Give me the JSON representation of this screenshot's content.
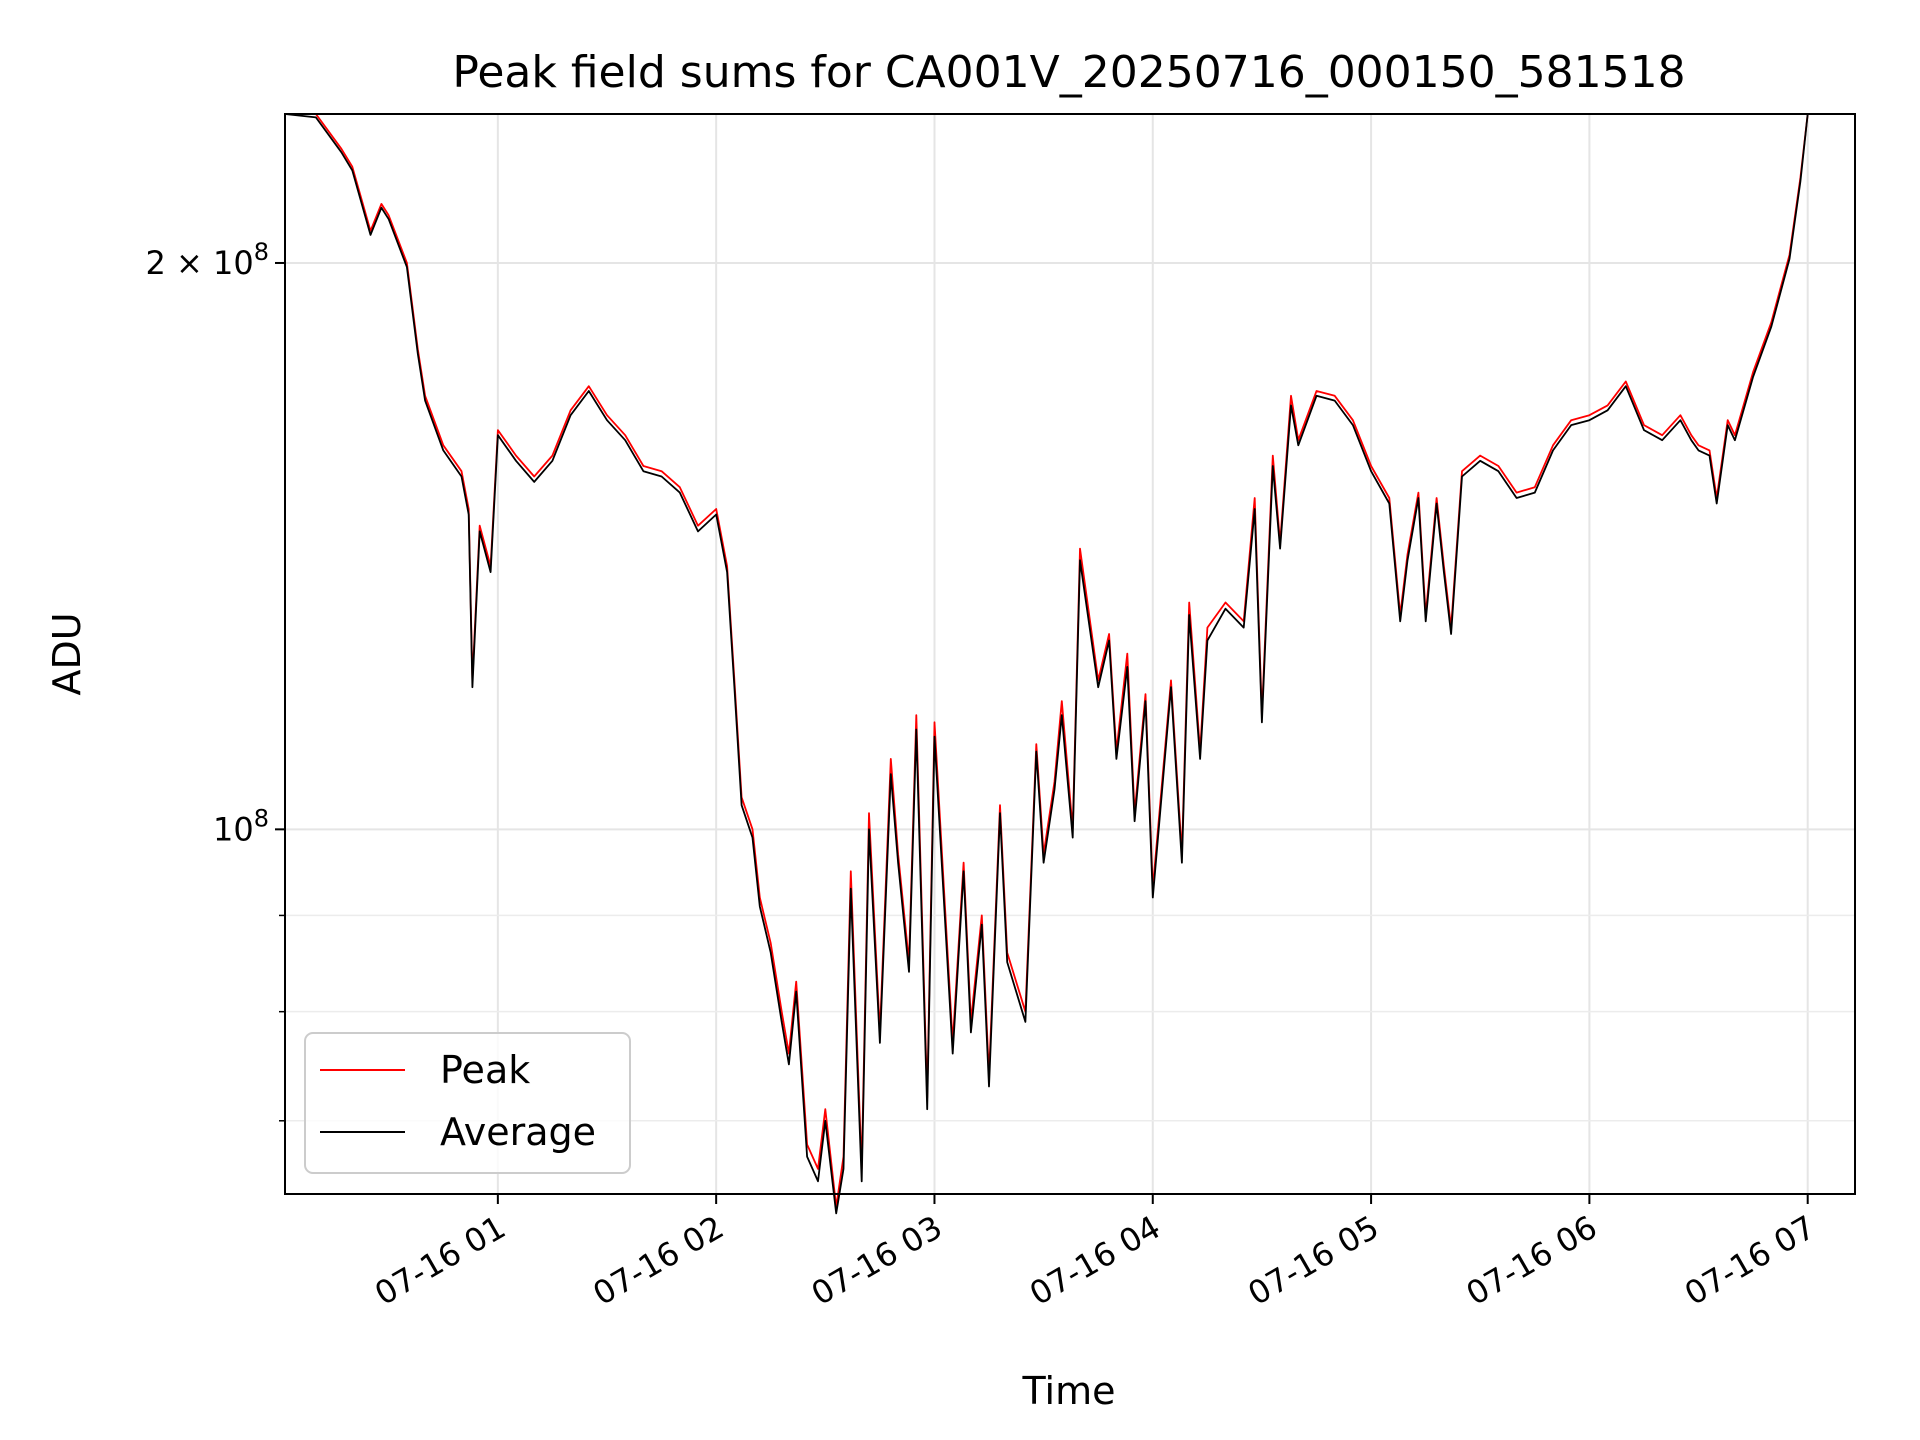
{
  "chart_data": {
    "type": "line",
    "title": "Peak field sums for CA001V_20250716_000150_581518",
    "xlabel": "Time",
    "ylabel": "ADU",
    "xlim": [
      "2025-07-16 00:01:30",
      "2025-07-16 07:13:00"
    ],
    "ylim": [
      64000000,
      240000000
    ],
    "yscale": "log",
    "grid": true,
    "legend_location": "lower left",
    "x_ticks": [
      {
        "x": "2025-07-16 01:00",
        "label": "07-16 01"
      },
      {
        "x": "2025-07-16 02:00",
        "label": "07-16 02"
      },
      {
        "x": "2025-07-16 03:00",
        "label": "07-16 03"
      },
      {
        "x": "2025-07-16 04:00",
        "label": "07-16 04"
      },
      {
        "x": "2025-07-16 05:00",
        "label": "07-16 05"
      },
      {
        "x": "2025-07-16 06:00",
        "label": "07-16 06"
      },
      {
        "x": "2025-07-16 07:00",
        "label": "07-16 07"
      }
    ],
    "y_ticks": [
      {
        "y": 200000000,
        "base": "2 × 10",
        "exp": "8"
      },
      {
        "y": 100000000,
        "base": "10",
        "exp": "8"
      }
    ],
    "y_minor_ticks": [
      60000000,
      70000000,
      80000000,
      90000000
    ],
    "x": [
      "2025-07-16 00:01:30",
      "2025-07-16 00:10",
      "2025-07-16 00:17",
      "2025-07-16 00:20",
      "2025-07-16 00:25",
      "2025-07-16 00:28",
      "2025-07-16 00:30",
      "2025-07-16 00:35",
      "2025-07-16 00:38",
      "2025-07-16 00:40",
      "2025-07-16 00:45",
      "2025-07-16 00:48",
      "2025-07-16 00:50",
      "2025-07-16 00:52",
      "2025-07-16 00:53",
      "2025-07-16 00:55",
      "2025-07-16 00:58",
      "2025-07-16 01:00",
      "2025-07-16 01:05",
      "2025-07-16 01:10",
      "2025-07-16 01:15",
      "2025-07-16 01:20",
      "2025-07-16 01:25",
      "2025-07-16 01:30",
      "2025-07-16 01:35",
      "2025-07-16 01:40",
      "2025-07-16 01:45",
      "2025-07-16 01:50",
      "2025-07-16 01:55",
      "2025-07-16 02:00",
      "2025-07-16 02:03",
      "2025-07-16 02:05",
      "2025-07-16 02:07",
      "2025-07-16 02:10",
      "2025-07-16 02:12",
      "2025-07-16 02:15",
      "2025-07-16 02:18",
      "2025-07-16 02:20",
      "2025-07-16 02:22",
      "2025-07-16 02:25",
      "2025-07-16 02:28",
      "2025-07-16 02:30",
      "2025-07-16 02:33",
      "2025-07-16 02:35",
      "2025-07-16 02:37",
      "2025-07-16 02:40",
      "2025-07-16 02:42",
      "2025-07-16 02:45",
      "2025-07-16 02:48",
      "2025-07-16 02:50",
      "2025-07-16 02:53",
      "2025-07-16 02:55",
      "2025-07-16 02:58",
      "2025-07-16 03:00",
      "2025-07-16 03:05",
      "2025-07-16 03:08",
      "2025-07-16 03:10",
      "2025-07-16 03:13",
      "2025-07-16 03:15",
      "2025-07-16 03:18",
      "2025-07-16 03:20",
      "2025-07-16 03:25",
      "2025-07-16 03:28",
      "2025-07-16 03:30",
      "2025-07-16 03:33",
      "2025-07-16 03:35",
      "2025-07-16 03:38",
      "2025-07-16 03:40",
      "2025-07-16 03:45",
      "2025-07-16 03:48",
      "2025-07-16 03:50",
      "2025-07-16 03:53",
      "2025-07-16 03:55",
      "2025-07-16 03:58",
      "2025-07-16 04:00",
      "2025-07-16 04:05",
      "2025-07-16 04:08",
      "2025-07-16 04:10",
      "2025-07-16 04:13",
      "2025-07-16 04:15",
      "2025-07-16 04:20",
      "2025-07-16 04:25",
      "2025-07-16 04:28",
      "2025-07-16 04:30",
      "2025-07-16 04:33",
      "2025-07-16 04:35",
      "2025-07-16 04:38",
      "2025-07-16 04:40",
      "2025-07-16 04:45",
      "2025-07-16 04:50",
      "2025-07-16 04:55",
      "2025-07-16 05:00",
      "2025-07-16 05:05",
      "2025-07-16 05:08",
      "2025-07-16 05:10",
      "2025-07-16 05:13",
      "2025-07-16 05:15",
      "2025-07-16 05:18",
      "2025-07-16 05:20",
      "2025-07-16 05:22",
      "2025-07-16 05:25",
      "2025-07-16 05:30",
      "2025-07-16 05:35",
      "2025-07-16 05:40",
      "2025-07-16 05:45",
      "2025-07-16 05:50",
      "2025-07-16 05:55",
      "2025-07-16 06:00",
      "2025-07-16 06:05",
      "2025-07-16 06:10",
      "2025-07-16 06:15",
      "2025-07-16 06:20",
      "2025-07-16 06:25",
      "2025-07-16 06:28",
      "2025-07-16 06:30",
      "2025-07-16 06:33",
      "2025-07-16 06:35",
      "2025-07-16 06:38",
      "2025-07-16 06:40",
      "2025-07-16 06:45",
      "2025-07-16 06:50",
      "2025-07-16 06:55",
      "2025-07-16 06:58",
      "2025-07-16 07:00"
    ],
    "series": [
      {
        "name": "Peak",
        "color": "#ff0000",
        "values": [
          240000000,
          240000000,
          230000000,
          225000000,
          208000000,
          215000000,
          212000000,
          200000000,
          180000000,
          170000000,
          160000000,
          157000000,
          155000000,
          148000000,
          120000000,
          145000000,
          138000000,
          163000000,
          158000000,
          154000000,
          158000000,
          167000000,
          172000000,
          166000000,
          162000000,
          156000000,
          155000000,
          152000000,
          145000000,
          148000000,
          138000000,
          120000000,
          104000000,
          100000000,
          92000000,
          87000000,
          80000000,
          76000000,
          83000000,
          68000000,
          66000000,
          71000000,
          63000000,
          67000000,
          95000000,
          66000000,
          102000000,
          78000000,
          109000000,
          97000000,
          85000000,
          115000000,
          72000000,
          114000000,
          77000000,
          96000000,
          79000000,
          90000000,
          74000000,
          103000000,
          86000000,
          80000000,
          111000000,
          97000000,
          106000000,
          117000000,
          100000000,
          141000000,
          120000000,
          127000000,
          110000000,
          124000000,
          102000000,
          118000000,
          93000000,
          120000000,
          97000000,
          132000000,
          110000000,
          128000000,
          132000000,
          129000000,
          150000000,
          115000000,
          158000000,
          142000000,
          170000000,
          161000000,
          171000000,
          170000000,
          165000000,
          156000000,
          150000000,
          130000000,
          140000000,
          151000000,
          130000000,
          150000000,
          138000000,
          128000000,
          155000000,
          158000000,
          156000000,
          151000000,
          152000000,
          160000000,
          165000000,
          166000000,
          168000000,
          173000000,
          164000000,
          162000000,
          166000000,
          162000000,
          160000000,
          159000000,
          150000000,
          165000000,
          162000000,
          175000000,
          186000000,
          202000000,
          222000000,
          240000000
        ]
      },
      {
        "name": "Average",
        "color": "#000000",
        "values": [
          240000000,
          239000000,
          229000000,
          224000000,
          207000000,
          214000000,
          211000000,
          199000000,
          179000000,
          169000000,
          159000000,
          156000000,
          154000000,
          147000000,
          119000000,
          144000000,
          137000000,
          162000000,
          157000000,
          153000000,
          157000000,
          166000000,
          171000000,
          165000000,
          161000000,
          155000000,
          154000000,
          151000000,
          144000000,
          147000000,
          137000000,
          119000000,
          103000000,
          99000000,
          91000000,
          86000000,
          79000000,
          75000000,
          82000000,
          67000000,
          65000000,
          70000000,
          62500000,
          66000000,
          93000000,
          65000000,
          100000000,
          77000000,
          107000000,
          96000000,
          84000000,
          113000000,
          71000000,
          112000000,
          76000000,
          95000000,
          78000000,
          89000000,
          73000000,
          102000000,
          85000000,
          79000000,
          110000000,
          96000000,
          105000000,
          115000000,
          99000000,
          139000000,
          119000000,
          126000000,
          109000000,
          122000000,
          101000000,
          117000000,
          92000000,
          119000000,
          96000000,
          130000000,
          109000000,
          126000000,
          131000000,
          128000000,
          148000000,
          114000000,
          156000000,
          141000000,
          168000000,
          160000000,
          170000000,
          169000000,
          164000000,
          155000000,
          149000000,
          129000000,
          139000000,
          150000000,
          129000000,
          149000000,
          137000000,
          127000000,
          154000000,
          157000000,
          155000000,
          150000000,
          151000000,
          159000000,
          164000000,
          165000000,
          167000000,
          172000000,
          163000000,
          161000000,
          165000000,
          161000000,
          159000000,
          158000000,
          149000000,
          164000000,
          161000000,
          174000000,
          185000000,
          201000000,
          221000000,
          240000000
        ]
      }
    ]
  }
}
